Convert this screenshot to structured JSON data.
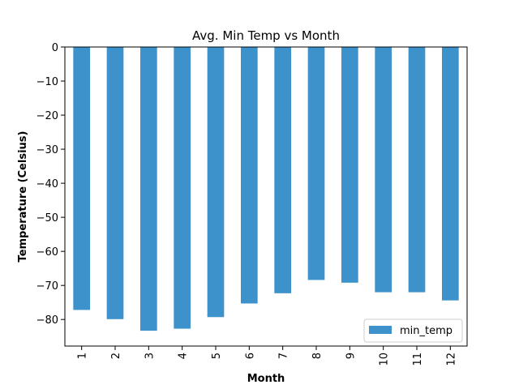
{
  "chart_data": {
    "type": "bar",
    "title": "Avg. Min Temp vs Month",
    "xlabel": "Month",
    "ylabel": "Temperature (Celsius)",
    "categories": [
      "1",
      "2",
      "3",
      "4",
      "5",
      "6",
      "7",
      "8",
      "9",
      "10",
      "11",
      "12"
    ],
    "series": [
      {
        "name": "min_temp",
        "values": [
          -77.2,
          -79.9,
          -83.3,
          -82.7,
          -79.3,
          -75.3,
          -72.3,
          -68.4,
          -69.2,
          -72.0,
          -72.0,
          -74.4
        ],
        "color": "#3e92cc"
      }
    ],
    "ylim": [
      -87.8,
      0
    ],
    "yticks": [
      0,
      -10,
      -20,
      -30,
      -40,
      -50,
      -60,
      -70,
      -80
    ],
    "ytick_labels": [
      "0",
      "−10",
      "−20",
      "−30",
      "−40",
      "−50",
      "−60",
      "−70",
      "−80"
    ],
    "grid": false,
    "legend_position": "bottom-right"
  }
}
